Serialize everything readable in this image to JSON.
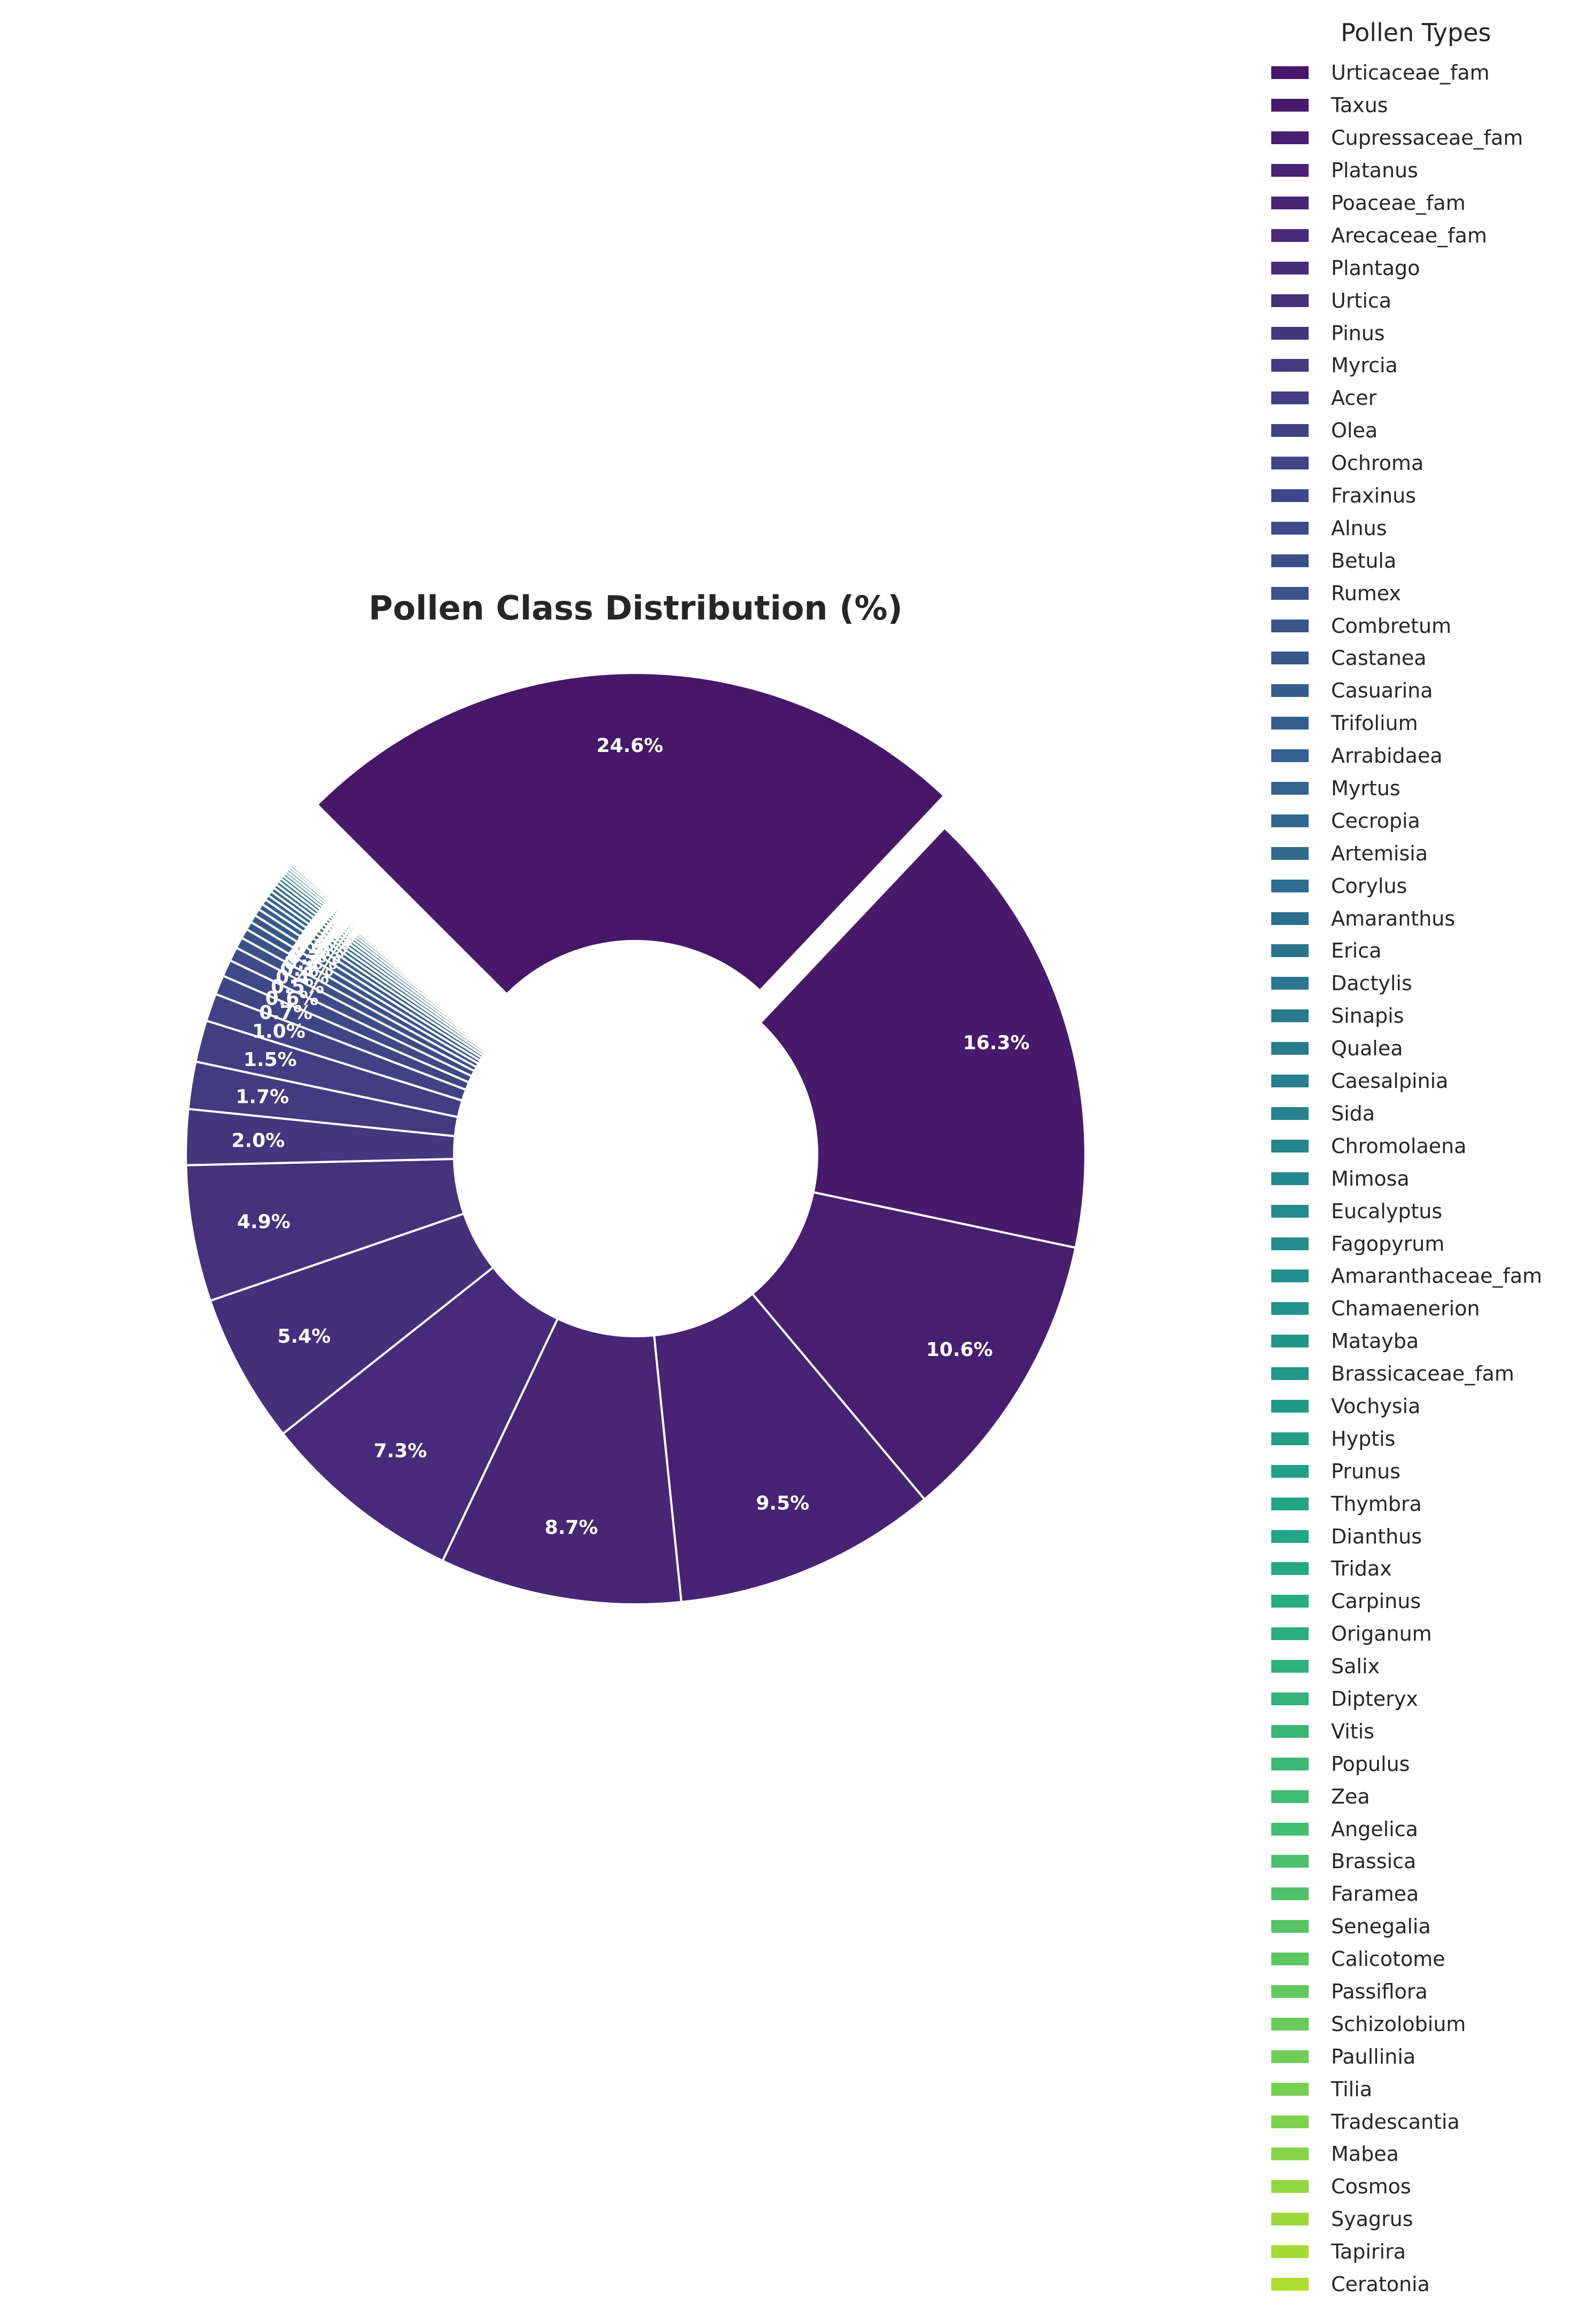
{
  "chart_data": {
    "type": "pie",
    "variant": "donut",
    "title": "Pollen Class Distribution (%)",
    "legend_title": "Pollen Types",
    "legend_position": "right",
    "start_angle_deg": 135,
    "colormap": "viridis",
    "edge_color": "#ffffff",
    "label_color": "#ffffff",
    "categories": [
      "Urticaceae_fam",
      "Taxus",
      "Cupressaceae_fam",
      "Platanus",
      "Poaceae_fam",
      "Arecaceae_fam",
      "Plantago",
      "Urtica",
      "Pinus",
      "Myrcia",
      "Acer",
      "Olea",
      "Ochroma",
      "Fraxinus",
      "Alnus",
      "Betula",
      "Rumex",
      "Combretum",
      "Castanea",
      "Casuarina",
      "Trifolium",
      "Arrabidaea",
      "Myrtus",
      "Cecropia",
      "Artemisia",
      "Corylus",
      "Amaranthus",
      "Erica",
      "Dactylis",
      "Sinapis",
      "Qualea",
      "Caesalpinia",
      "Sida",
      "Chromolaena",
      "Mimosa",
      "Eucalyptus",
      "Fagopyrum",
      "Amaranthaceae_fam",
      "Chamaenerion",
      "Matayba",
      "Brassicaceae_fam",
      "Vochysia",
      "Hyptis",
      "Prunus",
      "Thymbra",
      "Dianthus",
      "Tridax",
      "Carpinus",
      "Origanum",
      "Salix",
      "Dipteryx",
      "Vitis",
      "Populus",
      "Zea",
      "Angelica",
      "Brassica",
      "Faramea",
      "Senegalia",
      "Calicotome",
      "Passiflora",
      "Schizolobium",
      "Paullinia",
      "Tilia",
      "Tradescantia",
      "Mabea",
      "Cosmos",
      "Syagrus",
      "Tapirira",
      "Ceratonia"
    ],
    "values": [
      24.6,
      16.3,
      10.6,
      9.5,
      8.7,
      7.3,
      5.4,
      4.9,
      2.0,
      1.7,
      1.5,
      1.0,
      0.7,
      0.6,
      0.5,
      0.4,
      0.35,
      0.3,
      0.28,
      0.25,
      0.22,
      0.2,
      0.18,
      0.17,
      0.16,
      0.15,
      0.14,
      0.13,
      0.12,
      0.11,
      0.1,
      0.1,
      0.09,
      0.09,
      0.08,
      0.08,
      0.07,
      0.07,
      0.07,
      0.06,
      0.06,
      0.06,
      0.05,
      0.05,
      0.05,
      0.05,
      0.04,
      0.04,
      0.04,
      0.04,
      0.04,
      0.03,
      0.03,
      0.03,
      0.03,
      0.03,
      0.03,
      0.02,
      0.02,
      0.02,
      0.02,
      0.02,
      0.02,
      0.02,
      0.02,
      0.02,
      0.02,
      0.02,
      0.01
    ],
    "slice_labels": [
      "24.6%",
      "16.3%",
      "10.6%",
      "9.5%",
      "8.7%",
      "7.3%",
      "5.4%",
      "4.9%",
      "2.0%",
      "1.7%",
      "1.5%",
      "1.0%",
      "0.7%",
      "0.6%",
      "0.5%",
      "0.4%",
      "0.3%",
      "0.3%",
      "0.3%",
      "0.3%",
      "0.2%",
      "0.2%",
      "0.2%",
      "0.2%",
      "0.2%",
      "0.2%",
      "0.1%",
      "0.1%",
      "0.1%",
      "0.1%",
      "0.1%",
      "0.1%",
      "0.1%",
      "0.1%",
      "0.1%",
      "0.1%",
      "0.1%",
      "0.1%",
      "0.1%",
      "0.1%",
      "0.1%",
      "0.1%",
      "0.1%",
      "0.1%",
      "0.1%",
      "0.1%",
      "0.0%",
      "0.0%",
      "0.0%",
      "0.0%",
      "0.0%",
      "0.0%",
      "0.0%",
      "0.0%",
      "0.0%",
      "0.0%",
      "0.0%",
      "0.0%",
      "0.0%",
      "0.0%",
      "0.0%",
      "0.0%",
      "0.0%",
      "0.0%",
      "0.0%",
      "0.0%",
      "0.0%",
      "0.0%",
      "0.0%"
    ]
  }
}
